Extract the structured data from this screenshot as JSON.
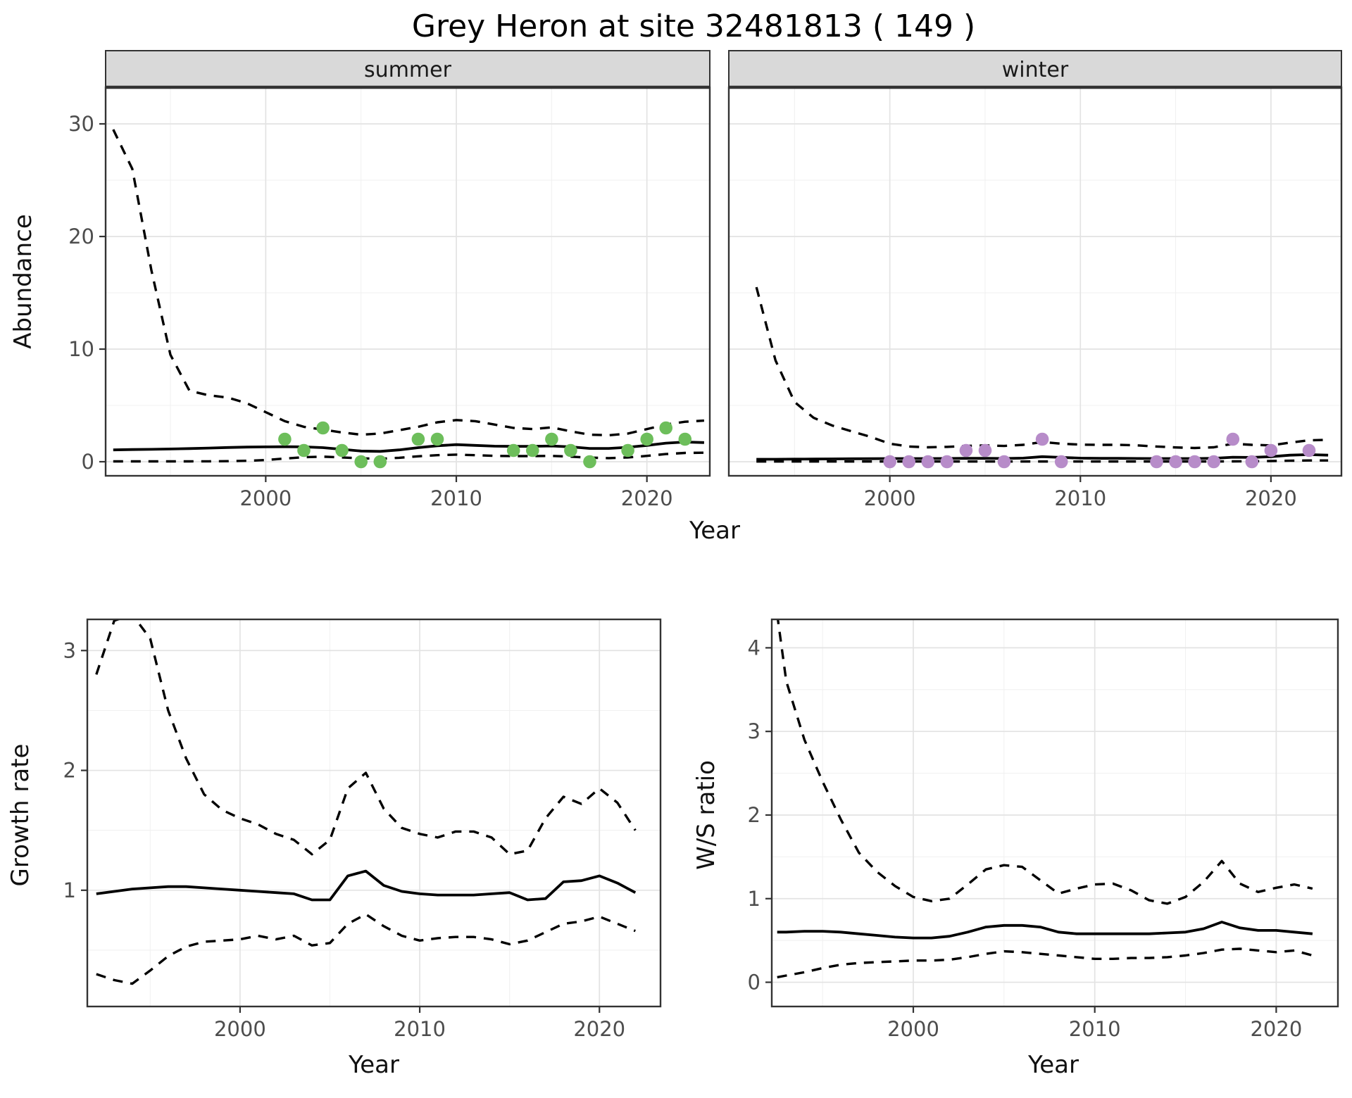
{
  "figure": {
    "title": "Grey Heron at site 32481813 ( 149 )",
    "axis_titles": {
      "abundance": "Abundance",
      "year_top": "Year",
      "growth_rate": "Growth rate",
      "year_bottom_left": "Year",
      "ws_ratio": "W/S ratio",
      "year_bottom_right": "Year"
    }
  },
  "colors": {
    "line": "#000000",
    "panel_border": "#333333",
    "grid_major": "#e3e3e3",
    "grid_minor": "#f1f1f1",
    "strip_fill": "#d9d9d9",
    "tick_text": "#4d4d4d",
    "summer_point": "#6dbe5b",
    "winter_point": "#b78cc9"
  },
  "chart_data": [
    {
      "id": "abundance-summer",
      "type": "line",
      "facet_label": "summer",
      "xlabel": "Year",
      "ylabel": "Abundance",
      "x_range": [
        1991.6,
        2023.3
      ],
      "y_range": [
        -1.25,
        33.25
      ],
      "x_ticks": [
        2000,
        2010,
        2020
      ],
      "x_minor": [
        1995,
        2005,
        2015
      ],
      "y_ticks": [
        0,
        10,
        20,
        30
      ],
      "y_minor": [
        5,
        15,
        25
      ],
      "series": [
        {
          "name": "median",
          "style": "solid",
          "x": [
            1992,
            1993,
            1994,
            1995,
            1996,
            1997,
            1998,
            1999,
            2000,
            2001,
            2002,
            2003,
            2004,
            2005,
            2006,
            2007,
            2008,
            2009,
            2010,
            2011,
            2012,
            2013,
            2014,
            2015,
            2016,
            2017,
            2018,
            2019,
            2020,
            2021,
            2022,
            2023
          ],
          "y": [
            1.05,
            1.08,
            1.1,
            1.13,
            1.17,
            1.21,
            1.26,
            1.3,
            1.32,
            1.33,
            1.32,
            1.25,
            1.1,
            0.95,
            0.92,
            1.05,
            1.25,
            1.42,
            1.52,
            1.45,
            1.38,
            1.36,
            1.37,
            1.4,
            1.32,
            1.18,
            1.18,
            1.28,
            1.45,
            1.65,
            1.75,
            1.7
          ]
        },
        {
          "name": "upper_ci",
          "style": "dashed",
          "x": [
            1992,
            1993,
            1994,
            1995,
            1996,
            1997,
            1998,
            1999,
            2000,
            2001,
            2002,
            2003,
            2004,
            2005,
            2006,
            2007,
            2008,
            2009,
            2010,
            2011,
            2012,
            2013,
            2014,
            2015,
            2016,
            2017,
            2018,
            2019,
            2020,
            2021,
            2022,
            2023
          ],
          "y": [
            29.5,
            26.0,
            17.0,
            9.5,
            6.3,
            5.9,
            5.7,
            5.2,
            4.4,
            3.6,
            3.1,
            2.85,
            2.6,
            2.4,
            2.5,
            2.8,
            3.1,
            3.5,
            3.7,
            3.6,
            3.3,
            3.0,
            2.9,
            3.05,
            2.7,
            2.4,
            2.35,
            2.5,
            2.9,
            3.3,
            3.55,
            3.65
          ]
        },
        {
          "name": "lower_ci",
          "style": "dashed",
          "x": [
            1992,
            1993,
            1994,
            1995,
            1996,
            1997,
            1998,
            1999,
            2000,
            2001,
            2002,
            2003,
            2004,
            2005,
            2006,
            2007,
            2008,
            2009,
            2010,
            2011,
            2012,
            2013,
            2014,
            2015,
            2016,
            2017,
            2018,
            2019,
            2020,
            2021,
            2022,
            2023
          ],
          "y": [
            0.03,
            0.03,
            0.03,
            0.03,
            0.03,
            0.04,
            0.05,
            0.08,
            0.15,
            0.28,
            0.4,
            0.45,
            0.38,
            0.3,
            0.26,
            0.35,
            0.48,
            0.58,
            0.63,
            0.58,
            0.52,
            0.5,
            0.5,
            0.52,
            0.45,
            0.36,
            0.32,
            0.38,
            0.52,
            0.68,
            0.78,
            0.8
          ]
        }
      ],
      "points": {
        "name": "observed_counts",
        "color_key": "summer_point",
        "x": [
          2001,
          2002,
          2003,
          2004,
          2005,
          2006,
          2008,
          2009,
          2013,
          2014,
          2015,
          2016,
          2017,
          2019,
          2020,
          2021,
          2022
        ],
        "y": [
          2,
          1,
          3,
          1,
          0,
          0,
          2,
          2,
          1,
          1,
          2,
          1,
          0,
          1,
          2,
          3,
          2
        ]
      }
    },
    {
      "id": "abundance-winter",
      "type": "line",
      "facet_label": "winter",
      "xlabel": "Year",
      "ylabel": "Abundance",
      "x_range": [
        1991.55,
        2023.7
      ],
      "y_range": [
        -1.25,
        33.25
      ],
      "x_ticks": [
        2000,
        2010,
        2020
      ],
      "x_minor": [
        1995,
        2005,
        2015
      ],
      "y_ticks": [
        0,
        10,
        20,
        30
      ],
      "y_minor": [
        5,
        15,
        25
      ],
      "series": [
        {
          "name": "median",
          "style": "solid",
          "x": [
            1993,
            1994,
            1995,
            1996,
            1997,
            1998,
            1999,
            2000,
            2001,
            2002,
            2003,
            2004,
            2005,
            2006,
            2007,
            2008,
            2009,
            2010,
            2011,
            2012,
            2013,
            2014,
            2015,
            2016,
            2017,
            2018,
            2019,
            2020,
            2021,
            2022,
            2023
          ],
          "y": [
            0.22,
            0.22,
            0.23,
            0.24,
            0.25,
            0.26,
            0.27,
            0.28,
            0.28,
            0.28,
            0.29,
            0.3,
            0.3,
            0.29,
            0.32,
            0.45,
            0.38,
            0.32,
            0.3,
            0.3,
            0.29,
            0.28,
            0.28,
            0.28,
            0.3,
            0.4,
            0.38,
            0.45,
            0.58,
            0.63,
            0.58
          ]
        },
        {
          "name": "upper_ci",
          "style": "dashed",
          "x": [
            1993,
            1994,
            1995,
            1996,
            1997,
            1998,
            1999,
            2000,
            2001,
            2002,
            2003,
            2004,
            2005,
            2006,
            2007,
            2008,
            2009,
            2010,
            2011,
            2012,
            2013,
            2014,
            2015,
            2016,
            2017,
            2018,
            2019,
            2020,
            2021,
            2022,
            2023
          ],
          "y": [
            15.5,
            9.0,
            5.3,
            3.9,
            3.2,
            2.7,
            2.2,
            1.6,
            1.35,
            1.28,
            1.32,
            1.4,
            1.45,
            1.4,
            1.5,
            1.75,
            1.6,
            1.52,
            1.5,
            1.5,
            1.45,
            1.35,
            1.27,
            1.22,
            1.28,
            1.6,
            1.5,
            1.45,
            1.7,
            1.9,
            1.95
          ]
        },
        {
          "name": "lower_ci",
          "style": "dashed",
          "x": [
            1993,
            1994,
            1995,
            1996,
            1997,
            1998,
            1999,
            2000,
            2001,
            2002,
            2003,
            2004,
            2005,
            2006,
            2007,
            2008,
            2009,
            2010,
            2011,
            2012,
            2013,
            2014,
            2015,
            2016,
            2017,
            2018,
            2019,
            2020,
            2021,
            2022,
            2023
          ],
          "y": [
            0.02,
            0.02,
            0.02,
            0.02,
            0.02,
            0.02,
            0.02,
            0.02,
            0.02,
            0.02,
            0.02,
            0.02,
            0.02,
            0.02,
            0.02,
            0.02,
            0.02,
            0.02,
            0.02,
            0.02,
            0.02,
            0.02,
            0.02,
            0.02,
            0.02,
            0.03,
            0.04,
            0.06,
            0.09,
            0.11,
            0.11
          ]
        }
      ],
      "points": {
        "name": "observed_counts",
        "color_key": "winter_point",
        "x": [
          2000,
          2001,
          2002,
          2003,
          2004,
          2005,
          2006,
          2008,
          2009,
          2014,
          2015,
          2016,
          2017,
          2018,
          2019,
          2020,
          2022
        ],
        "y": [
          0,
          0,
          0,
          0,
          1,
          1,
          0,
          2,
          0,
          0,
          0,
          0,
          0,
          2,
          0,
          1,
          1
        ]
      }
    },
    {
      "id": "growth-rate",
      "type": "line",
      "facet_label": null,
      "xlabel": "Year",
      "ylabel": "Growth rate",
      "x_range": [
        1991.5,
        2023.4
      ],
      "y_range": [
        0.03,
        3.26
      ],
      "x_ticks": [
        2000,
        2010,
        2020
      ],
      "x_minor": [
        1995,
        2005,
        2015
      ],
      "y_ticks": [
        1,
        2,
        3
      ],
      "y_minor": [
        0.5,
        1.5,
        2.5
      ],
      "series": [
        {
          "name": "median",
          "style": "solid",
          "x": [
            1992,
            1993,
            1994,
            1995,
            1996,
            1997,
            1998,
            1999,
            2000,
            2001,
            2002,
            2003,
            2004,
            2005,
            2006,
            2007,
            2008,
            2009,
            2010,
            2011,
            2012,
            2013,
            2014,
            2015,
            2016,
            2017,
            2018,
            2019,
            2020,
            2021,
            2022
          ],
          "y": [
            0.97,
            0.99,
            1.01,
            1.02,
            1.03,
            1.03,
            1.02,
            1.01,
            1.0,
            0.99,
            0.98,
            0.97,
            0.92,
            0.92,
            1.12,
            1.16,
            1.04,
            0.99,
            0.97,
            0.96,
            0.96,
            0.96,
            0.97,
            0.98,
            0.92,
            0.93,
            1.07,
            1.08,
            1.12,
            1.06,
            0.98
          ]
        },
        {
          "name": "upper_ci",
          "style": "dashed",
          "x": [
            1992,
            1993,
            1994,
            1995,
            1996,
            1997,
            1998,
            1999,
            2000,
            2001,
            2002,
            2003,
            2004,
            2005,
            2006,
            2007,
            2008,
            2009,
            2010,
            2011,
            2012,
            2013,
            2014,
            2015,
            2016,
            2017,
            2018,
            2019,
            2020,
            2021,
            2022
          ],
          "y": [
            2.8,
            3.25,
            3.3,
            3.1,
            2.5,
            2.1,
            1.8,
            1.67,
            1.6,
            1.55,
            1.47,
            1.42,
            1.3,
            1.42,
            1.85,
            1.98,
            1.68,
            1.52,
            1.47,
            1.44,
            1.49,
            1.49,
            1.44,
            1.3,
            1.33,
            1.6,
            1.78,
            1.72,
            1.85,
            1.73,
            1.5
          ]
        },
        {
          "name": "lower_ci",
          "style": "dashed",
          "x": [
            1992,
            1993,
            1994,
            1995,
            1996,
            1997,
            1998,
            1999,
            2000,
            2001,
            2002,
            2003,
            2004,
            2005,
            2006,
            2007,
            2008,
            2009,
            2010,
            2011,
            2012,
            2013,
            2014,
            2015,
            2016,
            2017,
            2018,
            2019,
            2020,
            2021,
            2022
          ],
          "y": [
            0.3,
            0.25,
            0.22,
            0.33,
            0.45,
            0.53,
            0.57,
            0.58,
            0.59,
            0.62,
            0.59,
            0.62,
            0.54,
            0.56,
            0.72,
            0.8,
            0.7,
            0.62,
            0.58,
            0.6,
            0.61,
            0.61,
            0.59,
            0.55,
            0.58,
            0.65,
            0.72,
            0.74,
            0.78,
            0.72,
            0.66
          ]
        }
      ],
      "points": null
    },
    {
      "id": "ws-ratio",
      "type": "line",
      "facet_label": null,
      "xlabel": "Year",
      "ylabel": "W/S ratio",
      "x_range": [
        1992.2,
        2023.4
      ],
      "y_range": [
        -0.29,
        4.34
      ],
      "x_ticks": [
        2000,
        2010,
        2020
      ],
      "x_minor": [
        1995,
        2005,
        2015
      ],
      "y_ticks": [
        0,
        1,
        2,
        3,
        4
      ],
      "y_minor": [
        0.5,
        1.5,
        2.5,
        3.5
      ],
      "series": [
        {
          "name": "median",
          "style": "solid",
          "x": [
            1992.5,
            1993,
            1994,
            1995,
            1996,
            1997,
            1998,
            1999,
            2000,
            2001,
            2002,
            2003,
            2004,
            2005,
            2006,
            2007,
            2008,
            2009,
            2010,
            2011,
            2012,
            2013,
            2014,
            2015,
            2016,
            2017,
            2018,
            2019,
            2020,
            2021,
            2022
          ],
          "y": [
            0.6,
            0.6,
            0.61,
            0.61,
            0.6,
            0.58,
            0.56,
            0.54,
            0.53,
            0.53,
            0.55,
            0.6,
            0.66,
            0.68,
            0.68,
            0.66,
            0.6,
            0.58,
            0.58,
            0.58,
            0.58,
            0.58,
            0.59,
            0.6,
            0.64,
            0.72,
            0.65,
            0.62,
            0.62,
            0.6,
            0.58
          ]
        },
        {
          "name": "upper_ci",
          "style": "dashed",
          "x": [
            1992.5,
            1993,
            1994,
            1995,
            1996,
            1997,
            1998,
            1999,
            2000,
            2001,
            2002,
            2003,
            2004,
            2005,
            2006,
            2007,
            2008,
            2009,
            2010,
            2011,
            2012,
            2013,
            2014,
            2015,
            2016,
            2017,
            2018,
            2019,
            2020,
            2021,
            2022
          ],
          "y": [
            4.4,
            3.6,
            2.9,
            2.4,
            1.95,
            1.55,
            1.32,
            1.15,
            1.02,
            0.97,
            1.0,
            1.17,
            1.35,
            1.4,
            1.38,
            1.22,
            1.06,
            1.12,
            1.17,
            1.18,
            1.1,
            0.98,
            0.94,
            1.02,
            1.2,
            1.45,
            1.18,
            1.08,
            1.13,
            1.17,
            1.12
          ]
        },
        {
          "name": "lower_ci",
          "style": "dashed",
          "x": [
            1992.5,
            1993,
            1994,
            1995,
            1996,
            1997,
            1998,
            1999,
            2000,
            2001,
            2002,
            2003,
            2004,
            2005,
            2006,
            2007,
            2008,
            2009,
            2010,
            2011,
            2012,
            2013,
            2014,
            2015,
            2016,
            2017,
            2018,
            2019,
            2020,
            2021,
            2022
          ],
          "y": [
            0.06,
            0.08,
            0.12,
            0.17,
            0.21,
            0.23,
            0.24,
            0.25,
            0.26,
            0.26,
            0.27,
            0.3,
            0.34,
            0.37,
            0.36,
            0.34,
            0.32,
            0.3,
            0.28,
            0.28,
            0.29,
            0.29,
            0.3,
            0.32,
            0.35,
            0.39,
            0.4,
            0.38,
            0.36,
            0.38,
            0.32
          ]
        }
      ],
      "points": null
    }
  ]
}
